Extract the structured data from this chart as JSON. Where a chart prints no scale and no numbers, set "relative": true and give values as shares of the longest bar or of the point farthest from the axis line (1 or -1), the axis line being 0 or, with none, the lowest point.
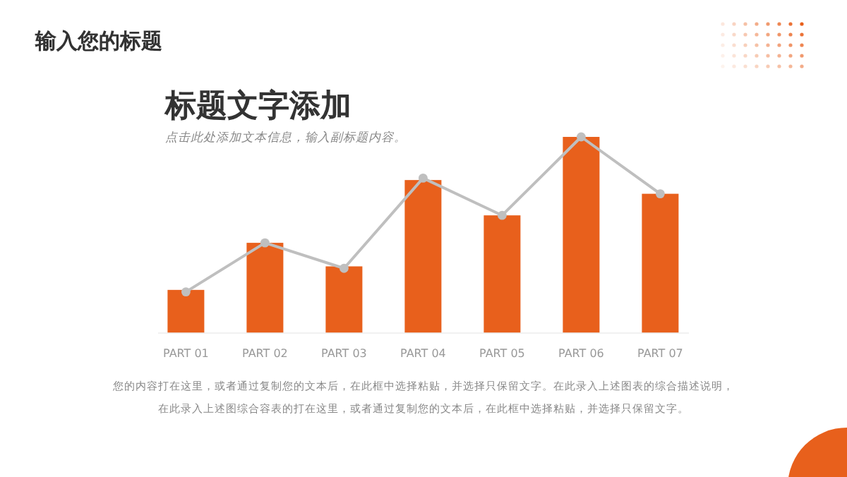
{
  "chart_data": {
    "type": "bar",
    "title": "标题文字添加",
    "subtitle": "点击此处添加文本信息，输入副标题内容。",
    "annotations": [
      "输入您的标题",
      "您的内容打在这里，或者通过复制您的文本后，在此框中选择粘贴，并选择只保留文字。在此录入上述图表的综合描述说明，",
      "在此录入上述图综合容表的打在这里，或者通过复制您的文本后，在此框中选择粘贴，并选择只保留文字。"
    ],
    "categories": [
      "PART 01",
      "PART 02",
      "PART 03",
      "PART 04",
      "PART 05",
      "PART 06",
      "PART 07"
    ],
    "relative": true,
    "series": [
      {
        "color": "#e8601c",
        "values": [
          0.22,
          0.46,
          0.34,
          0.78,
          0.6,
          1.0,
          0.71
        ]
      },
      {
        "type": "line",
        "color": "#bfbfbf",
        "marker": "circle",
        "line_style": "solid",
        "values": [
          0.21,
          0.46,
          0.33,
          0.79,
          0.6,
          1.0,
          0.71
        ]
      }
    ]
  }
}
